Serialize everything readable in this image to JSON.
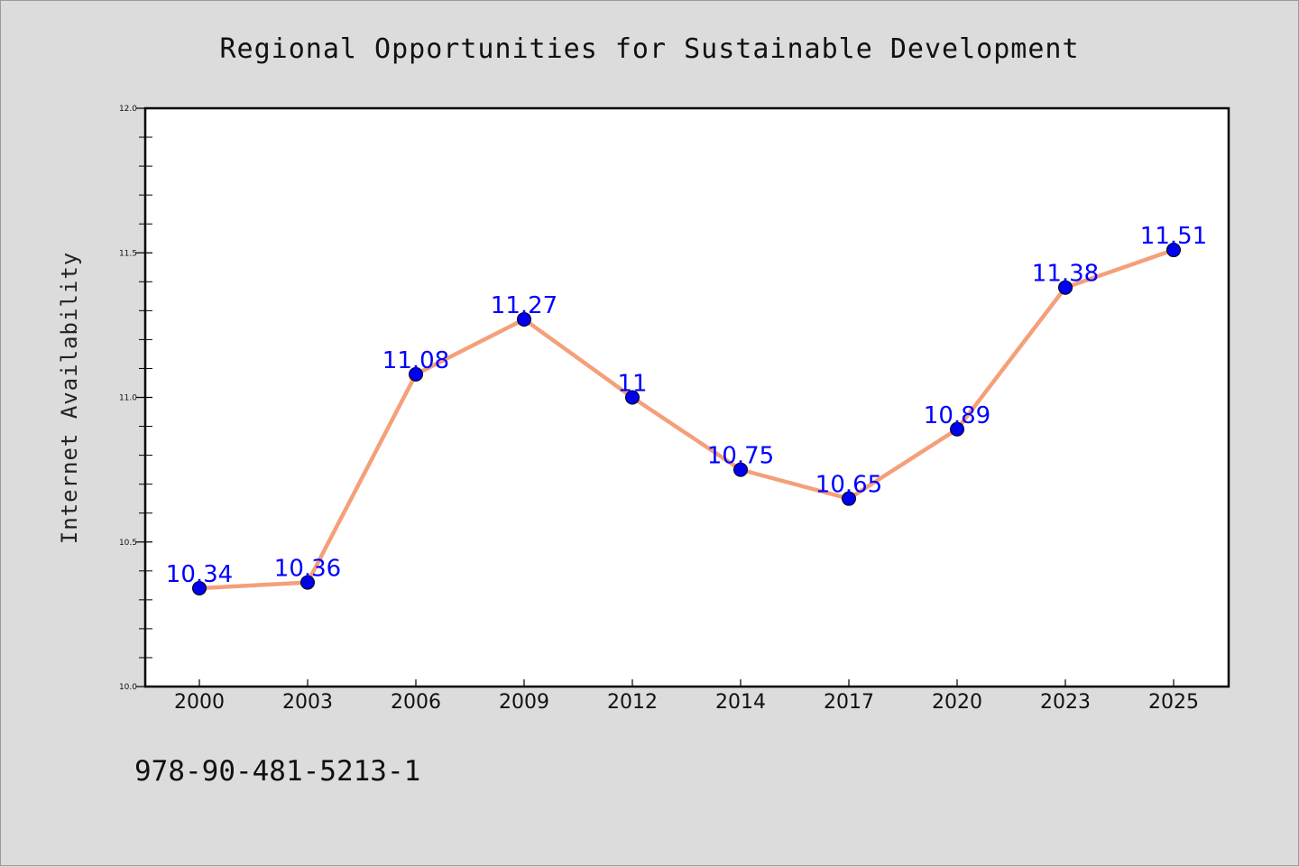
{
  "chart_data": {
    "type": "line",
    "title": "Regional Opportunities for Sustainable Development",
    "xlabel": "",
    "ylabel": "Internet Availability",
    "categories": [
      "2000",
      "2003",
      "2006",
      "2009",
      "2012",
      "2014",
      "2017",
      "2020",
      "2023",
      "2025"
    ],
    "series": [
      {
        "values": [
          10.34,
          10.36,
          11.08,
          11.27,
          11,
          10.75,
          10.65,
          10.89,
          11.38,
          11.51
        ],
        "labels": [
          "10.34",
          "10.36",
          "11.08",
          "11.27",
          "11",
          "10.75",
          "10.65",
          "10.89",
          "11.38",
          "11.51"
        ],
        "line_color": "#f4a07a",
        "marker_color": "#0000ee"
      }
    ],
    "ylim": [
      10.0,
      12.0
    ],
    "yticks": [
      "10.0",
      "10.5",
      "11.0",
      "11.5",
      "12.0"
    ],
    "grid": false,
    "legend": "none",
    "label_color": "#0000ff"
  },
  "footer": {
    "isbn": "978-90-481-5213-1"
  }
}
